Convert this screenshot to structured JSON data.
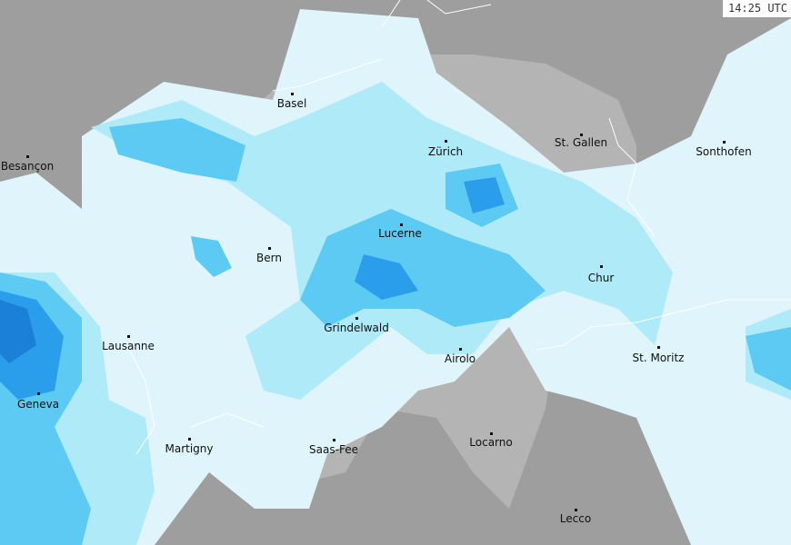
{
  "timestamp": "14:25 UTC",
  "colors": {
    "outside_land": "#9e9e9e",
    "switzerland": "#b4b4b4",
    "precip_very_light": "#dff4fb",
    "precip_light": "#aeeaf8",
    "precip_moderate": "#5ccaf2",
    "precip_heavy": "#2a9eea",
    "precip_very_heavy": "#1a80d8",
    "border": "#ffffff"
  },
  "cities": [
    {
      "name": "Basel"
    },
    {
      "name": "Besançon"
    },
    {
      "name": "Zürich"
    },
    {
      "name": "St. Gallen"
    },
    {
      "name": "Sonthofen"
    },
    {
      "name": "Lucerne"
    },
    {
      "name": "Bern"
    },
    {
      "name": "Chur"
    },
    {
      "name": "Lausanne"
    },
    {
      "name": "Grindelwald"
    },
    {
      "name": "Airolo"
    },
    {
      "name": "St. Moritz"
    },
    {
      "name": "Geneva"
    },
    {
      "name": "Martigny"
    },
    {
      "name": "Saas-Fee"
    },
    {
      "name": "Locarno"
    },
    {
      "name": "Lecco"
    }
  ]
}
